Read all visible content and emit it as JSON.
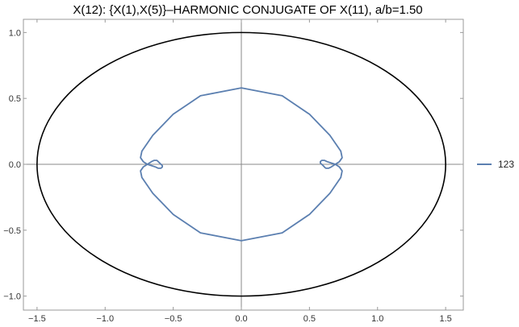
{
  "chart_data": {
    "type": "line",
    "title": "X(12): {X(1),X(5)}–HARMONIC CONJUGATE OF X(11), a/b=1.50",
    "xlabel": "",
    "ylabel": "",
    "xlim": [
      -1.6,
      1.6
    ],
    "ylim": [
      -1.1,
      1.1
    ],
    "x_ticks": [
      {
        "value": -1.5,
        "label": "−1.5"
      },
      {
        "value": -1.0,
        "label": "−1.0"
      },
      {
        "value": -0.5,
        "label": "−0.5"
      },
      {
        "value": 0.0,
        "label": "0.0"
      },
      {
        "value": 0.5,
        "label": "0.5"
      },
      {
        "value": 1.0,
        "label": "1.0"
      },
      {
        "value": 1.5,
        "label": "1.5"
      }
    ],
    "y_ticks": [
      {
        "value": 1.0,
        "label": "1.0"
      },
      {
        "value": 0.5,
        "label": "0.5"
      },
      {
        "value": 0.0,
        "label": "0.0"
      },
      {
        "value": -0.5,
        "label": "−0.5"
      },
      {
        "value": -1.0,
        "label": "−1.0"
      }
    ],
    "ellipse": {
      "a": 1.5,
      "b": 1.0,
      "color": "#000000"
    },
    "series": [
      {
        "name": "123",
        "color": "#5b7fb0",
        "x": [
          0.0,
          0.3,
          0.5,
          0.65,
          0.73,
          0.74,
          0.72,
          0.69,
          0.66,
          0.64,
          0.63,
          0.62,
          0.61,
          0.6,
          0.59,
          0.58,
          0.58,
          0.59,
          0.61,
          0.63,
          0.66,
          0.69,
          0.72,
          0.74,
          0.73,
          0.65,
          0.5,
          0.3,
          0.0,
          -0.3,
          -0.5,
          -0.65,
          -0.73,
          -0.74,
          -0.72,
          -0.69,
          -0.66,
          -0.64,
          -0.63,
          -0.62,
          -0.61,
          -0.6,
          -0.59,
          -0.58,
          -0.58,
          -0.59,
          -0.61,
          -0.63,
          -0.66,
          -0.69,
          -0.72,
          -0.74,
          -0.73,
          -0.65,
          -0.5,
          -0.3,
          0.0
        ],
        "y": [
          0.58,
          0.52,
          0.38,
          0.22,
          0.1,
          0.05,
          0.02,
          0.0,
          -0.02,
          -0.03,
          -0.03,
          -0.03,
          -0.02,
          -0.01,
          0.0,
          0.01,
          0.02,
          0.03,
          0.03,
          0.02,
          0.01,
          0.0,
          -0.02,
          -0.05,
          -0.1,
          -0.22,
          -0.38,
          -0.52,
          -0.58,
          -0.52,
          -0.38,
          -0.22,
          -0.1,
          -0.05,
          -0.02,
          0.0,
          0.02,
          0.03,
          0.03,
          0.03,
          0.02,
          0.01,
          0.0,
          -0.01,
          -0.02,
          -0.03,
          -0.03,
          -0.02,
          -0.01,
          0.0,
          0.02,
          0.05,
          0.1,
          0.22,
          0.38,
          0.52,
          0.58
        ]
      }
    ],
    "legend_position": "right"
  }
}
